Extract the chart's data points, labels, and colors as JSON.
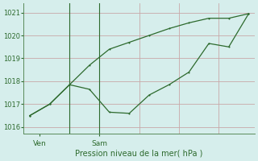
{
  "line1_x": [
    0,
    1,
    2,
    3,
    4,
    5,
    6,
    7,
    8,
    9,
    10,
    11
  ],
  "line1_y": [
    1016.5,
    1017.0,
    1017.85,
    1017.65,
    1016.65,
    1016.6,
    1017.4,
    1017.85,
    1018.4,
    1019.65,
    1019.5,
    1020.95
  ],
  "line2_x": [
    0,
    1,
    2,
    3,
    4,
    5,
    6,
    7,
    8,
    9,
    10,
    11
  ],
  "line2_y": [
    1016.5,
    1017.0,
    1017.85,
    1018.7,
    1019.4,
    1019.7,
    1020.0,
    1020.3,
    1020.55,
    1020.75,
    1020.75,
    1020.95
  ],
  "color": "#2d6a2d",
  "bg_color": "#d6eeec",
  "grid_color": "#c8a8a8",
  "xlabel": "Pression niveau de la mer( hPa )",
  "yticks": [
    1016,
    1017,
    1018,
    1019,
    1020,
    1021
  ],
  "ylim": [
    1015.7,
    1021.4
  ],
  "xlim": [
    -0.3,
    11.3
  ],
  "ven_tick_x": 0.5,
  "sam_tick_x": 3.5,
  "ven_line_x": 2.0,
  "sam_line_x": 3.5,
  "ven_label": "Ven",
  "sam_label": "Sam"
}
